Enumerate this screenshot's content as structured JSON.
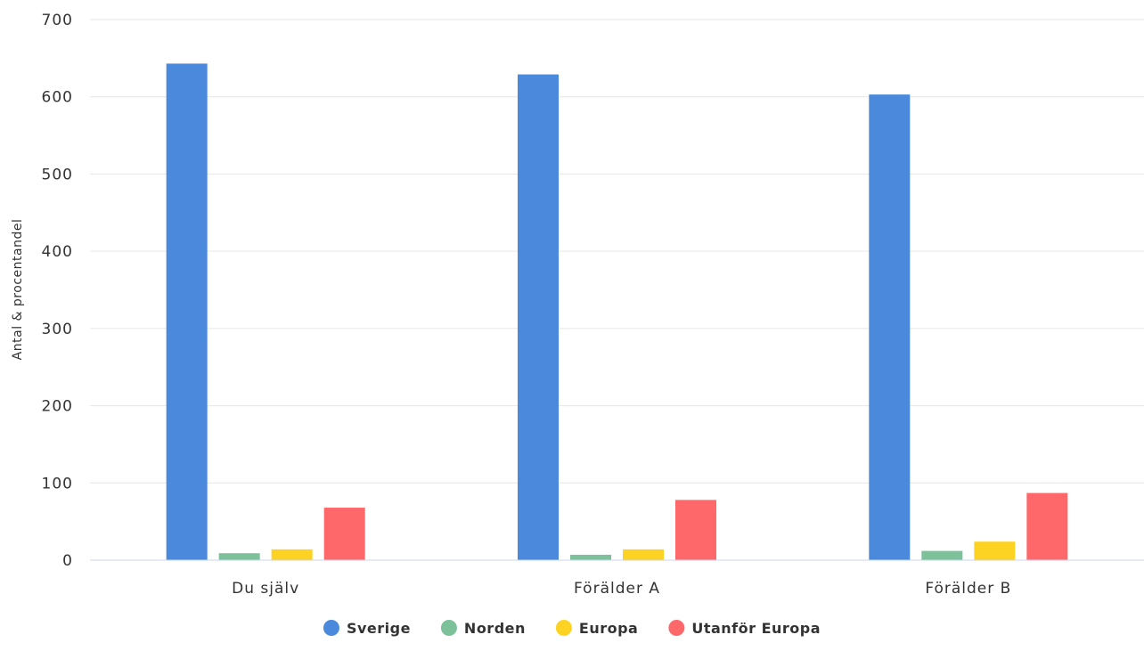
{
  "chart_data": {
    "type": "bar",
    "title": "",
    "xlabel": "",
    "ylabel": "Antal & procentandel",
    "ylim": [
      0,
      700
    ],
    "yticks": [
      0,
      100,
      200,
      300,
      400,
      500,
      600,
      700
    ],
    "grid": true,
    "legend_position": "bottom-center",
    "categories": [
      "Du själv",
      "Förälder A",
      "Förälder B"
    ],
    "series": [
      {
        "name": "Sverige",
        "color": "#4a89dc",
        "values": [
          643,
          629,
          603
        ]
      },
      {
        "name": "Norden",
        "color": "#7cc19a",
        "values": [
          9,
          7,
          12
        ]
      },
      {
        "name": "Europa",
        "color": "#fdd323",
        "values": [
          14,
          14,
          24
        ]
      },
      {
        "name": "Utanför Europa",
        "color": "#ff686b",
        "values": [
          68,
          78,
          87
        ]
      }
    ]
  }
}
